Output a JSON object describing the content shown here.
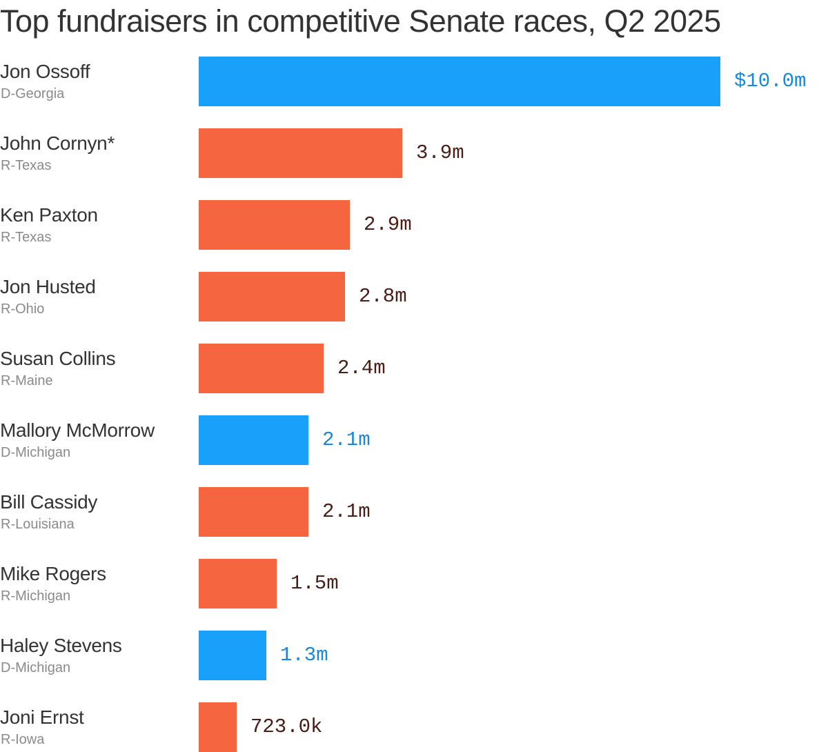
{
  "colors": {
    "dem_bar": "#18a0fb",
    "rep_bar": "#f5653f",
    "dem_label": "#1a88d8",
    "rep_label": "#4a1c14"
  },
  "chart_data": {
    "type": "bar",
    "orientation": "horizontal",
    "title": "Top fundraisers in competitive Senate races, Q2 2025",
    "xlabel": "",
    "ylabel": "",
    "xlim": [
      0,
      10.0
    ],
    "units": "millions of dollars",
    "categories": [
      "Jon Ossoff",
      "John Cornyn*",
      "Ken Paxton",
      "Jon Husted",
      "Susan Collins",
      "Mallory McMorrow",
      "Bill Cassidy",
      "Mike Rogers",
      "Haley Stevens",
      "Joni Ernst"
    ],
    "values": [
      10.0,
      3.9,
      2.9,
      2.8,
      2.4,
      2.1,
      2.1,
      1.5,
      1.3,
      0.723
    ],
    "rows": [
      {
        "name": "Jon Ossoff",
        "party_state": "D-Georgia",
        "party": "D",
        "value": 10.0,
        "label": "$10.0m"
      },
      {
        "name": "John Cornyn*",
        "party_state": "R-Texas",
        "party": "R",
        "value": 3.9,
        "label": "3.9m"
      },
      {
        "name": "Ken Paxton",
        "party_state": "R-Texas",
        "party": "R",
        "value": 2.9,
        "label": "2.9m"
      },
      {
        "name": "Jon Husted",
        "party_state": "R-Ohio",
        "party": "R",
        "value": 2.8,
        "label": "2.8m"
      },
      {
        "name": "Susan Collins",
        "party_state": "R-Maine",
        "party": "R",
        "value": 2.4,
        "label": "2.4m"
      },
      {
        "name": "Mallory McMorrow",
        "party_state": "D-Michigan",
        "party": "D",
        "value": 2.1,
        "label": "2.1m"
      },
      {
        "name": "Bill Cassidy",
        "party_state": "R-Louisiana",
        "party": "R",
        "value": 2.1,
        "label": "2.1m"
      },
      {
        "name": "Mike Rogers",
        "party_state": "R-Michigan",
        "party": "R",
        "value": 1.5,
        "label": "1.5m"
      },
      {
        "name": "Haley Stevens",
        "party_state": "D-Michigan",
        "party": "D",
        "value": 1.3,
        "label": "1.3m"
      },
      {
        "name": "Joni Ernst",
        "party_state": "R-Iowa",
        "party": "R",
        "value": 0.723,
        "label": "723.0k"
      }
    ]
  }
}
